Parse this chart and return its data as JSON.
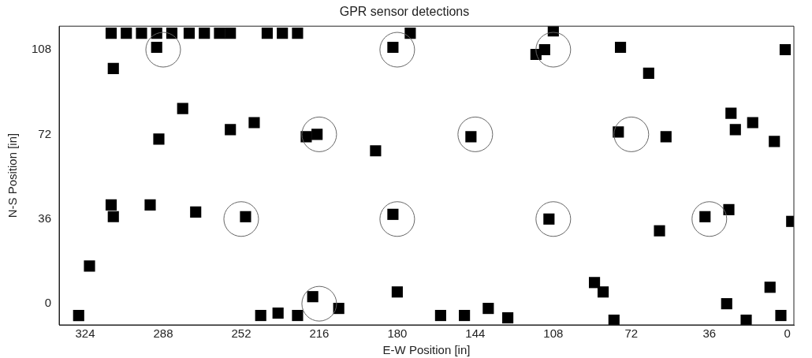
{
  "chart_data": {
    "type": "scatter",
    "title": "GPR sensor detections",
    "xlabel": "E-W Position [in]",
    "ylabel": "N-S Position [in]",
    "xlim": [
      336,
      -3
    ],
    "xticks": [
      324,
      288,
      252,
      216,
      180,
      144,
      108,
      72,
      36,
      0
    ],
    "ylim": [
      -9,
      118
    ],
    "yticks": [
      0,
      36,
      72,
      108
    ],
    "grid": false,
    "legend": false,
    "series": [
      {
        "color": "#000000",
        "marker": "square",
        "x": [
          312,
          305,
          298,
          291,
          284,
          276,
          269,
          262,
          257,
          240,
          233,
          226,
          311,
          291,
          182,
          174,
          112,
          108,
          116,
          77,
          64,
          1,
          279,
          290,
          257,
          246,
          222,
          217,
          190,
          146,
          78,
          56,
          26,
          24,
          16,
          6,
          311,
          312,
          294,
          273,
          250,
          182,
          110,
          59,
          38,
          27,
          -2,
          322,
          327,
          243,
          235,
          226,
          219,
          207,
          180,
          160,
          149,
          138,
          129,
          89,
          85,
          80,
          28,
          19,
          8,
          3
        ],
        "values": [
          115,
          115,
          115,
          115,
          115,
          115,
          115,
          115,
          115,
          115,
          115,
          115,
          100,
          109,
          109,
          115,
          108,
          116,
          106,
          109,
          98,
          108,
          83,
          70,
          74,
          77,
          71,
          72,
          65,
          71,
          73,
          71,
          81,
          74,
          77,
          69,
          37,
          42,
          42,
          39,
          37,
          38,
          36,
          31,
          37,
          40,
          35,
          16,
          -5,
          -5,
          -4,
          -5,
          3,
          -2,
          5,
          -5,
          -5,
          -2,
          -6,
          9,
          5,
          -7,
          0,
          -7,
          7,
          -5
        ]
      },
      {
        "color": "#666666",
        "marker": "circle",
        "x": [
          288,
          180,
          108,
          216,
          144,
          72,
          252,
          180,
          108,
          36,
          216
        ],
        "values": [
          108,
          108,
          108,
          72,
          72,
          72,
          36,
          36,
          36,
          36,
          0
        ]
      }
    ]
  }
}
